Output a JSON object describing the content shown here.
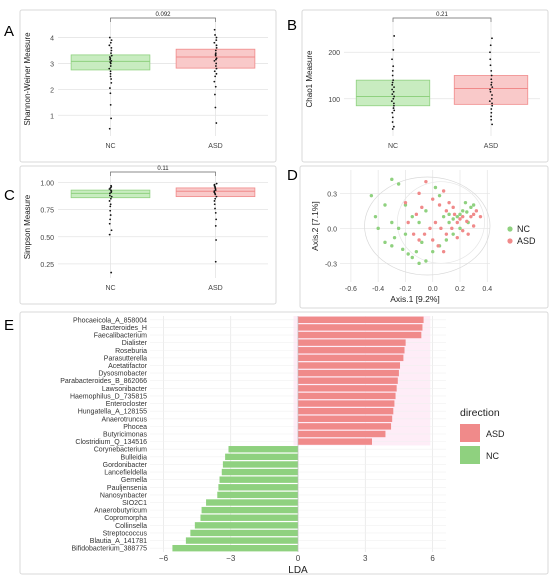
{
  "colors": {
    "nc": "#8fd17f",
    "asd": "#f08a8a",
    "nc_box": "#c8ecc0",
    "asd_box": "#f9c9c9",
    "panel_bg": "#ffffff",
    "grid": "#e4e4e4"
  },
  "chart_data": [
    {
      "panel": "A",
      "type": "box",
      "ylabel": "Shannon-Weiner Measure",
      "categories": [
        "NC",
        "ASD"
      ],
      "yticks": [
        1,
        2,
        3,
        4
      ],
      "ylim": [
        0.2,
        4.6
      ],
      "boxes": [
        {
          "name": "NC",
          "q1": 2.75,
          "median": 3.08,
          "q3": 3.33
        },
        {
          "name": "ASD",
          "q1": 2.82,
          "median": 3.25,
          "q3": 3.55
        }
      ],
      "points": {
        "NC": [
          0.48,
          0.88,
          1.4,
          1.85,
          2.05,
          2.25,
          2.4,
          2.5,
          2.6,
          2.7,
          2.8,
          2.9,
          3.0,
          3.05,
          3.1,
          3.15,
          3.2,
          3.25,
          3.3,
          3.4,
          3.5,
          3.6,
          3.7,
          3.8,
          3.9,
          4.0
        ],
        "ASD": [
          0.7,
          1.3,
          1.8,
          2.1,
          2.3,
          2.5,
          2.6,
          2.7,
          2.8,
          2.9,
          3.0,
          3.1,
          3.15,
          3.2,
          3.3,
          3.35,
          3.4,
          3.5,
          3.6,
          3.7,
          3.8,
          3.9,
          4.0,
          4.1,
          4.3
        ]
      },
      "pvalue": "0.092"
    },
    {
      "panel": "B",
      "type": "box",
      "ylabel": "Chao1 Measure",
      "categories": [
        "NC",
        "ASD"
      ],
      "yticks": [
        100,
        200
      ],
      "ylim": [
        20,
        265
      ],
      "boxes": [
        {
          "name": "NC",
          "q1": 85,
          "median": 105,
          "q3": 140
        },
        {
          "name": "ASD",
          "q1": 88,
          "median": 122,
          "q3": 150
        }
      ],
      "points": {
        "NC": [
          35,
          40,
          50,
          60,
          70,
          75,
          80,
          85,
          90,
          95,
          100,
          105,
          110,
          115,
          120,
          125,
          130,
          135,
          140,
          150,
          160,
          170,
          185,
          205,
          235
        ],
        "ASD": [
          45,
          55,
          62,
          70,
          78,
          85,
          90,
          95,
          100,
          108,
          115,
          120,
          125,
          130,
          135,
          142,
          150,
          160,
          172,
          185,
          200,
          215,
          230
        ]
      },
      "pvalue": "0.21"
    },
    {
      "panel": "C",
      "type": "box",
      "ylabel": "Simpson Measure",
      "categories": [
        "NC",
        "ASD"
      ],
      "yticks": [
        0.25,
        0.5,
        0.75,
        1.0
      ],
      "yticklabels": [
        "0.25",
        "0.50",
        "0.75",
        "1.00"
      ],
      "ylim": [
        0.12,
        1.06
      ],
      "boxes": [
        {
          "name": "NC",
          "q1": 0.86,
          "median": 0.9,
          "q3": 0.93
        },
        {
          "name": "ASD",
          "q1": 0.87,
          "median": 0.92,
          "q3": 0.95
        }
      ],
      "points": {
        "NC": [
          0.17,
          0.52,
          0.56,
          0.62,
          0.66,
          0.7,
          0.74,
          0.78,
          0.8,
          0.83,
          0.85,
          0.87,
          0.88,
          0.9,
          0.91,
          0.92,
          0.93,
          0.94,
          0.95,
          0.96,
          0.97
        ],
        "ASD": [
          0.27,
          0.47,
          0.6,
          0.66,
          0.72,
          0.76,
          0.8,
          0.83,
          0.85,
          0.87,
          0.89,
          0.9,
          0.91,
          0.92,
          0.93,
          0.94,
          0.95,
          0.96,
          0.97,
          0.98,
          0.99
        ]
      },
      "pvalue": "0.11"
    },
    {
      "panel": "D",
      "type": "scatter",
      "xlabel": "Axis.1  [9.2%]",
      "ylabel": "Axis.2  [7.1%]",
      "xticks": [
        -0.6,
        -0.4,
        -0.2,
        0.0,
        0.2,
        0.4
      ],
      "xticklabels": [
        "-0.6",
        "-0.4",
        "-0.2",
        "0.0",
        "0.2",
        "0.4"
      ],
      "yticks": [
        -0.3,
        0.0,
        0.3
      ],
      "yticklabels": [
        "-0.3",
        "0.0",
        "0.3"
      ],
      "xlim": [
        -0.68,
        0.42
      ],
      "ylim": [
        -0.46,
        0.5
      ],
      "legend_position": "right",
      "series": [
        {
          "name": "NC",
          "points": [
            [
              -0.3,
              0.42
            ],
            [
              -0.25,
              0.38
            ],
            [
              -0.45,
              0.28
            ],
            [
              -0.35,
              0.2
            ],
            [
              -0.42,
              0.1
            ],
            [
              -0.3,
              0.05
            ],
            [
              -0.25,
              0.0
            ],
            [
              -0.28,
              -0.08
            ],
            [
              -0.3,
              -0.15
            ],
            [
              -0.22,
              -0.18
            ],
            [
              -0.18,
              -0.22
            ],
            [
              -0.15,
              -0.25
            ],
            [
              -0.12,
              -0.2
            ],
            [
              -0.1,
              -0.3
            ],
            [
              -0.05,
              -0.28
            ],
            [
              -0.08,
              -0.12
            ],
            [
              -0.2,
              -0.05
            ],
            [
              -0.15,
              0.1
            ],
            [
              -0.1,
              0.05
            ],
            [
              -0.05,
              0.15
            ],
            [
              0.02,
              0.35
            ],
            [
              0.05,
              0.28
            ],
            [
              0.08,
              0.1
            ],
            [
              0.12,
              0.05
            ],
            [
              0.15,
              0.08
            ],
            [
              0.18,
              0.1
            ],
            [
              0.2,
              0.12
            ],
            [
              0.22,
              0.15
            ],
            [
              0.25,
              0.14
            ],
            [
              0.28,
              0.18
            ],
            [
              0.3,
              0.2
            ],
            [
              0.26,
              0.05
            ],
            [
              0.2,
              0.0
            ],
            [
              0.15,
              -0.05
            ],
            [
              0.1,
              -0.1
            ],
            [
              0.05,
              -0.15
            ],
            [
              -0.35,
              -0.12
            ],
            [
              -0.4,
              0.0
            ],
            [
              -0.2,
              0.2
            ],
            [
              0.0,
              -0.2
            ],
            [
              0.12,
              0.12
            ],
            [
              0.24,
              0.22
            ]
          ]
        },
        {
          "name": "ASD",
          "points": [
            [
              -0.2,
              0.22
            ],
            [
              -0.1,
              0.3
            ],
            [
              -0.05,
              0.4
            ],
            [
              0.0,
              0.25
            ],
            [
              0.05,
              0.2
            ],
            [
              0.08,
              0.32
            ],
            [
              0.1,
              0.15
            ],
            [
              0.12,
              0.22
            ],
            [
              0.15,
              0.18
            ],
            [
              0.18,
              0.05
            ],
            [
              0.2,
              0.08
            ],
            [
              0.22,
              0.1
            ],
            [
              0.25,
              0.06
            ],
            [
              0.28,
              0.1
            ],
            [
              0.3,
              0.12
            ],
            [
              0.32,
              0.15
            ],
            [
              0.26,
              -0.05
            ],
            [
              0.22,
              -0.02
            ],
            [
              0.18,
              -0.08
            ],
            [
              0.14,
              0.0
            ],
            [
              0.1,
              -0.05
            ],
            [
              0.06,
              0.0
            ],
            [
              0.02,
              0.05
            ],
            [
              -0.02,
              0.0
            ],
            [
              -0.06,
              -0.05
            ],
            [
              -0.1,
              -0.1
            ],
            [
              -0.14,
              -0.05
            ],
            [
              -0.18,
              0.05
            ],
            [
              -0.12,
              0.12
            ],
            [
              0.0,
              -0.1
            ],
            [
              0.04,
              -0.15
            ],
            [
              0.08,
              -0.2
            ],
            [
              0.3,
              0.02
            ],
            [
              0.35,
              0.1
            ],
            [
              0.16,
              0.12
            ],
            [
              -0.08,
              0.18
            ]
          ]
        }
      ]
    },
    {
      "panel": "E",
      "type": "bar",
      "orientation": "horizontal",
      "xlabel": "LDA",
      "xticks": [
        -6,
        -3,
        0,
        3,
        6
      ],
      "xticklabels": [
        "−6",
        "−3",
        "0",
        "3",
        "6"
      ],
      "xlim": [
        -6.6,
        6.6
      ],
      "legend_title": "direction",
      "legend_position": "right",
      "legend": [
        "ASD",
        "NC"
      ],
      "categories": [
        "Phocaeicola_A_858004",
        "Bacteroides_H",
        "Faecalibacterium",
        "Dialister",
        "Roseburia",
        "Parasutterella",
        "Acetatifactor",
        "Dysosmobacter",
        "Parabacteroides_B_862066",
        "Lawsonibacter",
        "Haemophilus_D_735815",
        "Enterocloster",
        "Hungatella_A_128155",
        "Anaerotruncus",
        "Phocea",
        "Butyricimonas",
        "Clostridium_Q_134516",
        "Corynebacterium",
        "Bulleidia",
        "Gordonibacter",
        "Lancefieldella",
        "Gemella",
        "Pauljensenia",
        "Nanosynbacter",
        "SIO2C1",
        "Anaerobutyricum",
        "Copromorpha",
        "Collinsella",
        "Streptococcus",
        "Blautia_A_141781",
        "Bifidobacterium_388775"
      ],
      "values": [
        5.6,
        5.55,
        5.5,
        4.8,
        4.75,
        4.7,
        4.55,
        4.5,
        4.45,
        4.4,
        4.35,
        4.3,
        4.25,
        4.2,
        4.15,
        3.9,
        3.3,
        -3.1,
        -3.25,
        -3.35,
        -3.4,
        -3.5,
        -3.55,
        -3.6,
        -4.1,
        -4.3,
        -4.35,
        -4.6,
        -4.8,
        -5.0,
        -5.6
      ],
      "directions": [
        "ASD",
        "ASD",
        "ASD",
        "ASD",
        "ASD",
        "ASD",
        "ASD",
        "ASD",
        "ASD",
        "ASD",
        "ASD",
        "ASD",
        "ASD",
        "ASD",
        "ASD",
        "ASD",
        "ASD",
        "NC",
        "NC",
        "NC",
        "NC",
        "NC",
        "NC",
        "NC",
        "NC",
        "NC",
        "NC",
        "NC",
        "NC",
        "NC",
        "NC"
      ]
    }
  ]
}
